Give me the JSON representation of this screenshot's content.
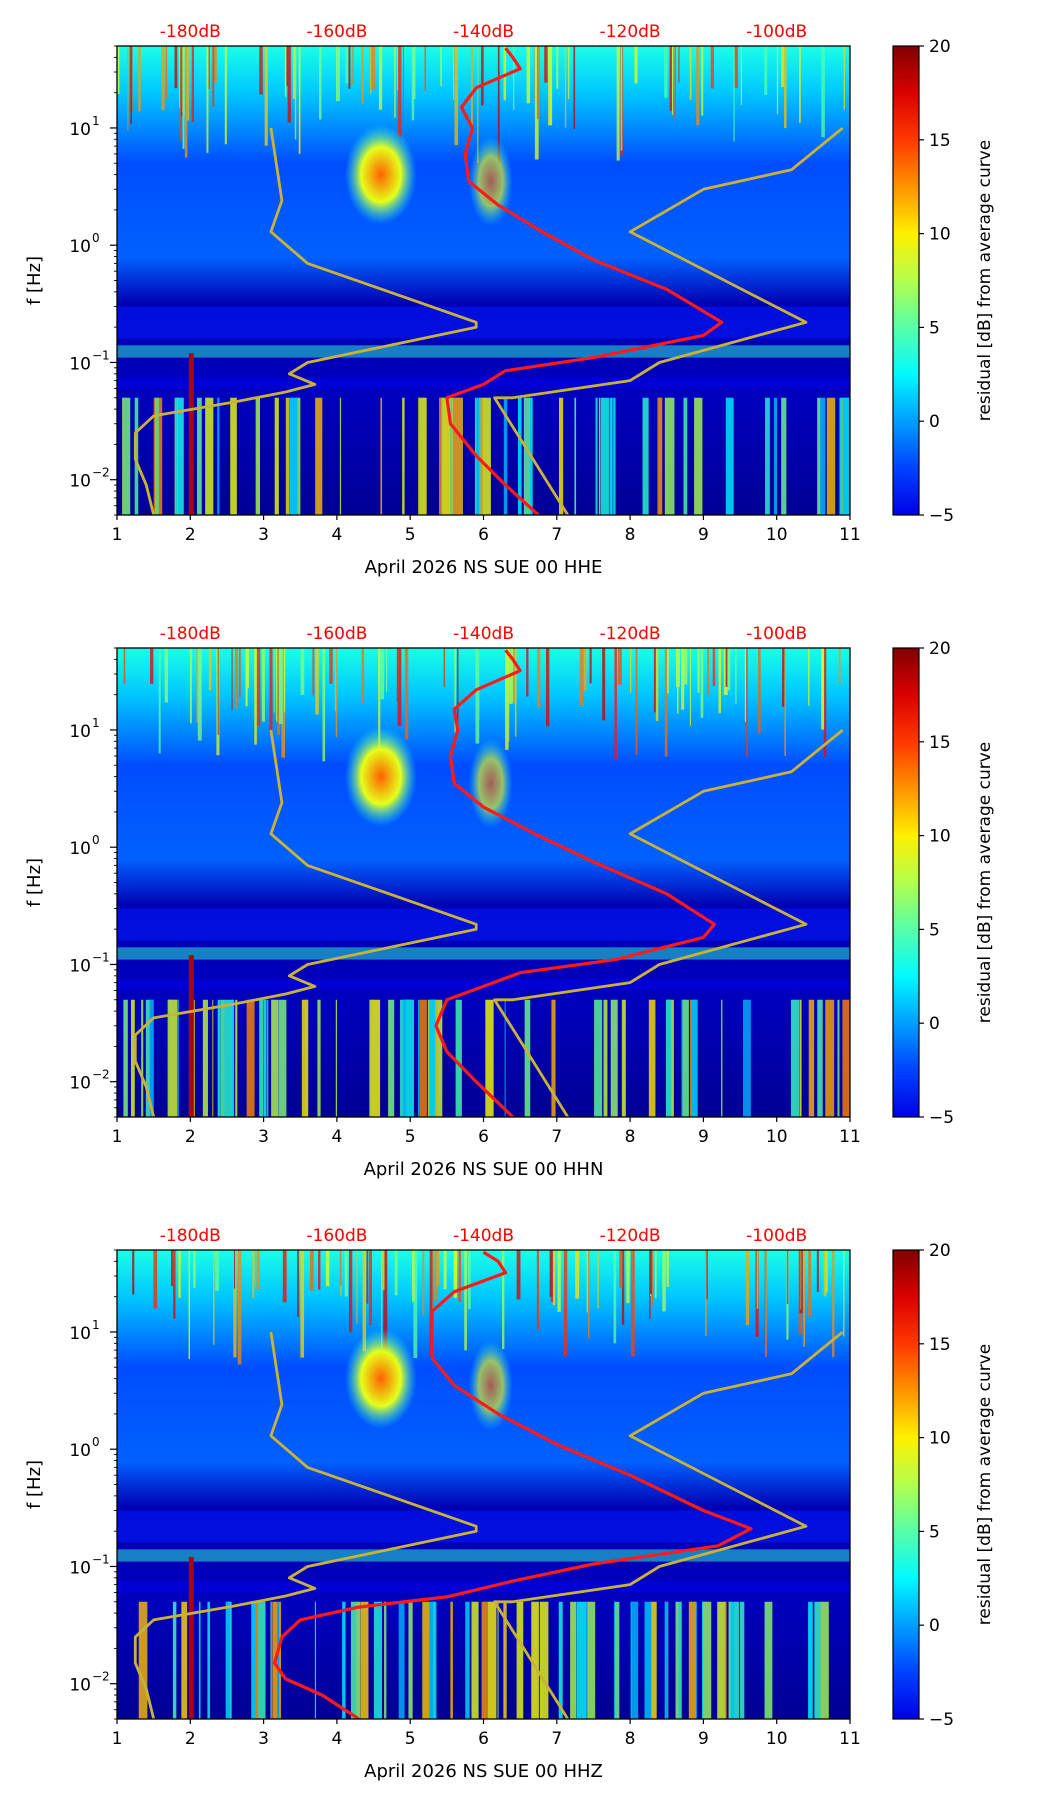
{
  "colors": {
    "curve": "#ff1a1a",
    "model": "#c8b23a",
    "top_tick_text": "#ff0000",
    "axis": "#000000"
  },
  "colorbar": {
    "label": "residual [dB] from average curve",
    "ticks": [
      "20",
      "15",
      "10",
      "5",
      "0",
      "−5"
    ],
    "tick_values": [
      20,
      15,
      10,
      5,
      0,
      -5
    ],
    "range": [
      -5,
      20
    ],
    "colormap": "jet"
  },
  "chart_data": [
    {
      "type": "heatmap",
      "title": "",
      "xlabel": "April 2026 NS SUE 00 HHE",
      "ylabel": "f [Hz]",
      "xlim": [
        1,
        11
      ],
      "ylim_hz": [
        0.005,
        50
      ],
      "yscale": "log",
      "x_tick_labels": [
        "1",
        "2",
        "3",
        "4",
        "5",
        "6",
        "7",
        "8",
        "9",
        "10",
        "11"
      ],
      "x_tick_values": [
        1,
        2,
        3,
        4,
        5,
        6,
        7,
        8,
        9,
        10,
        11
      ],
      "y_tick_labels": [
        "10",
        "10",
        "10",
        "10"
      ],
      "y_tick_exponents": [
        "1",
        "0",
        "−1",
        "−2"
      ],
      "y_tick_values": [
        10,
        1,
        0.1,
        0.01
      ],
      "top_axis_labels": [
        "-180dB",
        "-160dB",
        "-140dB",
        "-120dB",
        "-100dB"
      ],
      "top_axis_dB": [
        -180,
        -160,
        -140,
        -120,
        -100
      ],
      "top_axis_x_at": [
        2,
        4,
        6,
        8,
        10
      ],
      "series": [
        {
          "role": "average-curve",
          "points": [
            [
              6.75,
              0.005
            ],
            [
              6.3,
              0.009
            ],
            [
              5.9,
              0.016
            ],
            [
              5.55,
              0.03
            ],
            [
              5.5,
              0.05
            ],
            [
              6.0,
              0.065
            ],
            [
              6.3,
              0.085
            ],
            [
              7.5,
              0.11
            ],
            [
              9.0,
              0.17
            ],
            [
              9.25,
              0.22
            ],
            [
              8.5,
              0.42
            ],
            [
              7.5,
              0.75
            ],
            [
              6.8,
              1.3
            ],
            [
              6.2,
              2.2
            ],
            [
              5.8,
              3.5
            ],
            [
              5.75,
              6
            ],
            [
              5.85,
              10
            ],
            [
              5.7,
              15
            ],
            [
              5.9,
              22
            ],
            [
              6.5,
              32
            ],
            [
              6.4,
              40
            ],
            [
              6.3,
              48
            ]
          ]
        },
        {
          "role": "noise-model-low",
          "points": [
            [
              1.5,
              0.005
            ],
            [
              1.4,
              0.009
            ],
            [
              1.25,
              0.015
            ],
            [
              1.25,
              0.025
            ],
            [
              1.5,
              0.035
            ],
            [
              2.6,
              0.046
            ],
            [
              3.3,
              0.056
            ],
            [
              3.7,
              0.065
            ],
            [
              3.35,
              0.08
            ],
            [
              3.6,
              0.1
            ],
            [
              5.9,
              0.2
            ],
            [
              5.9,
              0.22
            ],
            [
              3.6,
              0.7
            ],
            [
              3.1,
              1.3
            ],
            [
              3.25,
              2.4
            ],
            [
              3.1,
              10
            ]
          ]
        },
        {
          "role": "noise-model-high",
          "points": [
            [
              7.15,
              0.005
            ],
            [
              6.55,
              0.02
            ],
            [
              6.15,
              0.05
            ],
            [
              6.4,
              0.05
            ],
            [
              8.0,
              0.07
            ],
            [
              8.4,
              0.1
            ],
            [
              10.4,
              0.22
            ],
            [
              8.0,
              1.3
            ],
            [
              9.0,
              3.0
            ],
            [
              10.2,
              4.4
            ],
            [
              10.9,
              10
            ]
          ]
        }
      ]
    },
    {
      "type": "heatmap",
      "title": "",
      "xlabel": "April 2026 NS SUE 00 HHN",
      "ylabel": "f [Hz]",
      "xlim": [
        1,
        11
      ],
      "ylim_hz": [
        0.005,
        50
      ],
      "yscale": "log",
      "x_tick_labels": [
        "1",
        "2",
        "3",
        "4",
        "5",
        "6",
        "7",
        "8",
        "9",
        "10",
        "11"
      ],
      "x_tick_values": [
        1,
        2,
        3,
        4,
        5,
        6,
        7,
        8,
        9,
        10,
        11
      ],
      "y_tick_labels": [
        "10",
        "10",
        "10",
        "10"
      ],
      "y_tick_exponents": [
        "1",
        "0",
        "−1",
        "−2"
      ],
      "y_tick_values": [
        10,
        1,
        0.1,
        0.01
      ],
      "top_axis_labels": [
        "-180dB",
        "-160dB",
        "-140dB",
        "-120dB",
        "-100dB"
      ],
      "top_axis_dB": [
        -180,
        -160,
        -140,
        -120,
        -100
      ],
      "top_axis_x_at": [
        2,
        4,
        6,
        8,
        10
      ],
      "series": [
        {
          "role": "average-curve",
          "points": [
            [
              6.4,
              0.005
            ],
            [
              5.9,
              0.01
            ],
            [
              5.5,
              0.018
            ],
            [
              5.35,
              0.03
            ],
            [
              5.5,
              0.05
            ],
            [
              6.0,
              0.065
            ],
            [
              6.5,
              0.085
            ],
            [
              7.8,
              0.11
            ],
            [
              9.0,
              0.17
            ],
            [
              9.15,
              0.22
            ],
            [
              8.5,
              0.4
            ],
            [
              7.5,
              0.75
            ],
            [
              6.7,
              1.3
            ],
            [
              6.0,
              2.2
            ],
            [
              5.6,
              3.5
            ],
            [
              5.55,
              6
            ],
            [
              5.65,
              10
            ],
            [
              5.6,
              15
            ],
            [
              5.9,
              22
            ],
            [
              6.5,
              32
            ],
            [
              6.4,
              40
            ],
            [
              6.3,
              48
            ]
          ]
        },
        {
          "role": "noise-model-low",
          "points": [
            [
              1.5,
              0.005
            ],
            [
              1.4,
              0.009
            ],
            [
              1.25,
              0.015
            ],
            [
              1.25,
              0.025
            ],
            [
              1.5,
              0.035
            ],
            [
              2.6,
              0.046
            ],
            [
              3.3,
              0.056
            ],
            [
              3.7,
              0.065
            ],
            [
              3.35,
              0.08
            ],
            [
              3.6,
              0.1
            ],
            [
              5.9,
              0.2
            ],
            [
              5.9,
              0.22
            ],
            [
              3.6,
              0.7
            ],
            [
              3.1,
              1.3
            ],
            [
              3.25,
              2.4
            ],
            [
              3.1,
              10
            ]
          ]
        },
        {
          "role": "noise-model-high",
          "points": [
            [
              7.15,
              0.005
            ],
            [
              6.55,
              0.02
            ],
            [
              6.15,
              0.05
            ],
            [
              6.4,
              0.05
            ],
            [
              8.0,
              0.07
            ],
            [
              8.4,
              0.1
            ],
            [
              10.4,
              0.22
            ],
            [
              8.0,
              1.3
            ],
            [
              9.0,
              3.0
            ],
            [
              10.2,
              4.4
            ],
            [
              10.9,
              10
            ]
          ]
        }
      ]
    },
    {
      "type": "heatmap",
      "title": "",
      "xlabel": "April 2026 NS SUE 00 HHZ",
      "ylabel": "f [Hz]",
      "xlim": [
        1,
        11
      ],
      "ylim_hz": [
        0.005,
        50
      ],
      "yscale": "log",
      "x_tick_labels": [
        "1",
        "2",
        "3",
        "4",
        "5",
        "6",
        "7",
        "8",
        "9",
        "10",
        "11"
      ],
      "x_tick_values": [
        1,
        2,
        3,
        4,
        5,
        6,
        7,
        8,
        9,
        10,
        11
      ],
      "y_tick_labels": [
        "10",
        "10",
        "10",
        "10"
      ],
      "y_tick_exponents": [
        "1",
        "0",
        "−1",
        "−2"
      ],
      "y_tick_values": [
        10,
        1,
        0.1,
        0.01
      ],
      "top_axis_labels": [
        "-180dB",
        "-160dB",
        "-140dB",
        "-120dB",
        "-100dB"
      ],
      "top_axis_dB": [
        -180,
        -160,
        -140,
        -120,
        -100
      ],
      "top_axis_x_at": [
        2,
        4,
        6,
        8,
        10
      ],
      "series": [
        {
          "role": "average-curve",
          "points": [
            [
              4.3,
              0.005
            ],
            [
              3.8,
              0.008
            ],
            [
              3.3,
              0.011
            ],
            [
              3.15,
              0.015
            ],
            [
              3.25,
              0.025
            ],
            [
              3.5,
              0.035
            ],
            [
              4.3,
              0.045
            ],
            [
              5.5,
              0.055
            ],
            [
              6.4,
              0.075
            ],
            [
              7.5,
              0.105
            ],
            [
              9.2,
              0.15
            ],
            [
              9.65,
              0.21
            ],
            [
              9.0,
              0.3
            ],
            [
              8.0,
              0.6
            ],
            [
              7.0,
              1.1
            ],
            [
              6.2,
              2.0
            ],
            [
              5.6,
              3.5
            ],
            [
              5.3,
              6
            ],
            [
              5.3,
              10
            ],
            [
              5.3,
              15
            ],
            [
              5.6,
              22
            ],
            [
              6.3,
              32
            ],
            [
              6.2,
              40
            ],
            [
              6.0,
              48
            ]
          ]
        },
        {
          "role": "noise-model-low",
          "points": [
            [
              1.5,
              0.005
            ],
            [
              1.4,
              0.009
            ],
            [
              1.25,
              0.015
            ],
            [
              1.25,
              0.025
            ],
            [
              1.5,
              0.035
            ],
            [
              2.6,
              0.046
            ],
            [
              3.3,
              0.056
            ],
            [
              3.7,
              0.065
            ],
            [
              3.35,
              0.08
            ],
            [
              3.6,
              0.1
            ],
            [
              5.9,
              0.2
            ],
            [
              5.9,
              0.22
            ],
            [
              3.6,
              0.7
            ],
            [
              3.1,
              1.3
            ],
            [
              3.25,
              2.4
            ],
            [
              3.1,
              10
            ]
          ]
        },
        {
          "role": "noise-model-high",
          "points": [
            [
              7.15,
              0.005
            ],
            [
              6.55,
              0.02
            ],
            [
              6.15,
              0.05
            ],
            [
              6.4,
              0.05
            ],
            [
              8.0,
              0.07
            ],
            [
              8.4,
              0.1
            ],
            [
              10.4,
              0.22
            ],
            [
              8.0,
              1.3
            ],
            [
              9.0,
              3.0
            ],
            [
              10.2,
              4.4
            ],
            [
              10.9,
              10
            ]
          ]
        }
      ]
    }
  ]
}
